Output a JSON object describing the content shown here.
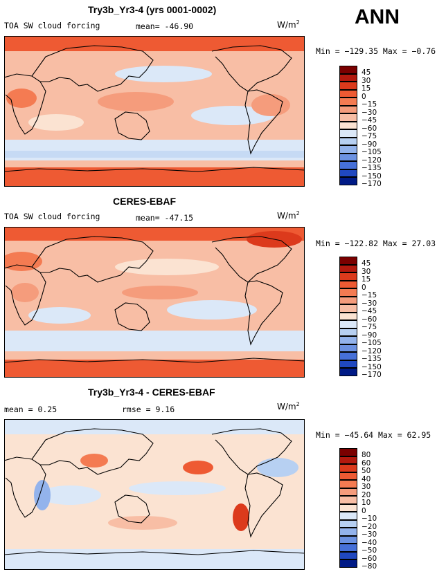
{
  "season": "ANN",
  "panels": [
    {
      "title": "Try3b_Yr3-4 (yrs 0001-0002)",
      "left_label": "TOA SW cloud forcing",
      "center_label": "mean= -46.90",
      "units_base": "W/m",
      "units_exp": "2",
      "minmax": "Min = −129.35 Max =  −0.76",
      "colorbar_labels": [
        "45",
        "30",
        "15",
        "0",
        "−15",
        "−30",
        "−45",
        "−60",
        "−75",
        "−90",
        "−105",
        "−120",
        "−135",
        "−150",
        "−170"
      ]
    },
    {
      "title": "CERES-EBAF",
      "left_label": "TOA SW cloud forcing",
      "center_label": "mean= -47.15",
      "units_base": "W/m",
      "units_exp": "2",
      "minmax": "Min = −122.82 Max =  27.03",
      "colorbar_labels": [
        "45",
        "30",
        "15",
        "0",
        "−15",
        "−30",
        "−45",
        "−60",
        "−75",
        "−90",
        "−105",
        "−120",
        "−135",
        "−150",
        "−170"
      ]
    },
    {
      "title": "Try3b_Yr3-4 - CERES-EBAF",
      "left_label": "mean =    0.25",
      "center_label": "rmse =    9.16",
      "units_base": "W/m",
      "units_exp": "2",
      "minmax": "Min = −45.64 Max =  62.95",
      "colorbar_labels": [
        "80",
        "60",
        "50",
        "40",
        "30",
        "20",
        "10",
        "0",
        "−10",
        "−20",
        "−30",
        "−40",
        "−50",
        "−60",
        "−80"
      ]
    }
  ],
  "colors": {
    "abs_scale": [
      "#7a0000",
      "#b3190e",
      "#dc3a1c",
      "#ee5a33",
      "#f47b52",
      "#f59c7c",
      "#f8bea5",
      "#fbe3d2",
      "#dbe8f8",
      "#b7d0f2",
      "#93b3ec",
      "#6c92e2",
      "#4670d8",
      "#2048c0",
      "#001a86"
    ],
    "diff_scale": [
      "#7a0000",
      "#b3190e",
      "#dc3a1c",
      "#ee5a33",
      "#f47b52",
      "#f59c7c",
      "#f8bea5",
      "#fbe3d2",
      "#dbe8f8",
      "#b7d0f2",
      "#93b3ec",
      "#6c92e2",
      "#4670d8",
      "#2048c0",
      "#001a86"
    ]
  }
}
